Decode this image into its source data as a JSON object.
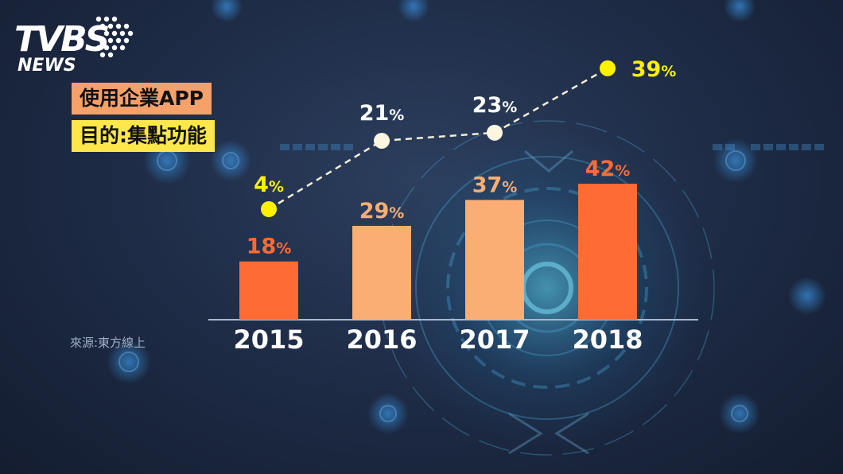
{
  "logo": {
    "top": "TVBS",
    "bottom": "NEWS"
  },
  "title_lines": [
    "使用企業APP",
    "目的:集點功能"
  ],
  "source": "來源:東方線上",
  "colors": {
    "bar_highlight": "#ff6b35",
    "bar_normal": "#fbae74",
    "line": "#f3f0d6",
    "dot_yellow": "#fff200",
    "dot_light": "#fbf6df",
    "tick_label": "#ffffff",
    "bar_label_highlight": "#ff6b35",
    "bar_label_normal": "#fbae74",
    "line_label_yellow": "#fff200",
    "line_label_light": "#ffffff"
  },
  "chart_data": {
    "type": "bar",
    "categories": [
      "2015",
      "2016",
      "2017",
      "2018"
    ],
    "series": [
      {
        "type": "bar",
        "values": [
          18,
          29,
          37,
          42
        ],
        "labels": [
          "18%",
          "29%",
          "37%",
          "42%"
        ],
        "bar_colors": [
          "bar_highlight",
          "bar_normal",
          "bar_normal",
          "bar_highlight"
        ]
      },
      {
        "type": "line",
        "values": [
          4,
          21,
          23,
          39
        ],
        "labels": [
          "4%",
          "21%",
          "23%",
          "39%"
        ],
        "dot_colors": [
          "dot_yellow",
          "dot_light",
          "dot_light",
          "dot_yellow"
        ]
      }
    ],
    "unit": "%",
    "grid": false
  }
}
